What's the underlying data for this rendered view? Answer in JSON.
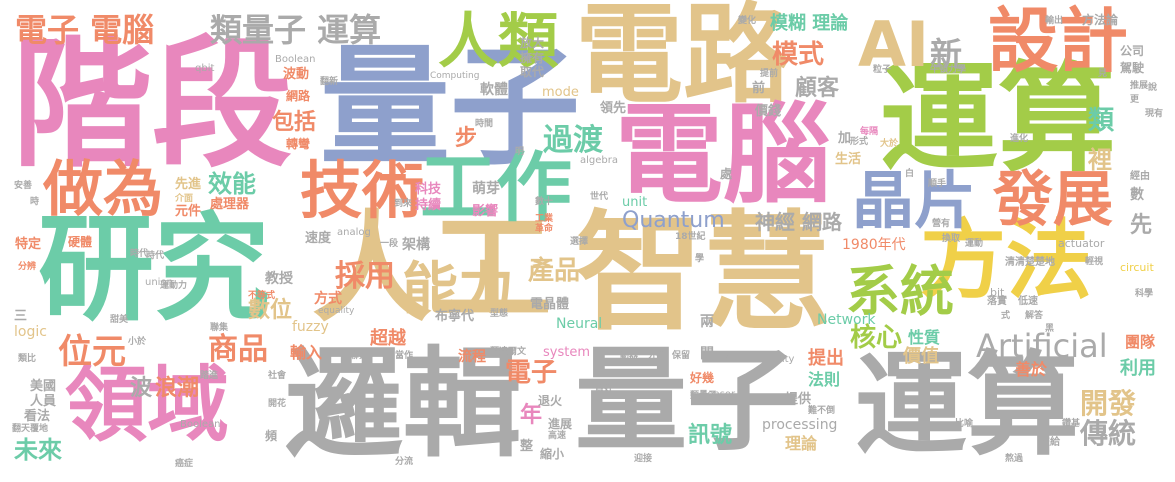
{
  "palette": {
    "pink": "#e887bd",
    "gold": "#e2c48a",
    "green": "#6ccca8",
    "gray": "#aaaaaa",
    "lime": "#a3cc48",
    "salmon": "#f08a68",
    "blue": "#8ea0cc",
    "yellow": "#f0d048"
  },
  "words": {
    "jieduan": "階段",
    "liangzi": "量子",
    "dianlu": "電路",
    "yunsuan_top": "運算",
    "diannao_big": "電腦",
    "yanjiu": "研究",
    "rengong": "人工",
    "zhihui": "智慧",
    "fangfa": "方法",
    "luoji": "邏輯",
    "liangzi_bottom": "量子",
    "yunsuan_bottom": "運算",
    "lingyu": "領域",
    "gongzuo": "工作",
    "jishu": "技術",
    "shiji": "設計",
    "ai": "AI",
    "zuowei": "做為",
    "renlei": "人類",
    "jingpian": "晶片",
    "fazhan": "發展",
    "nengli": "能力",
    "xitong": "系統",
    "artificial": "Artificial",
    "dianzi_diannao": "電子 電腦",
    "leiliangzi_yunsuan": "類量子 運算",
    "xin": "新",
    "moshi": "模式",
    "muhu_lilun": "模糊 理論",
    "guoke": "顧客",
    "guodu": "過渡",
    "caiyong": "採用",
    "chanpin": "產品",
    "weiyuan": "位元",
    "shangpin": "商品",
    "hexin": "核心",
    "kaifa": "開發",
    "chuantong": "傳統",
    "xunhao": "訊號",
    "weilai": "未來",
    "quantum": "Quantum",
    "shenjing_wanglu": "神經 網路",
    "xiaoneng": "效能",
    "baokuo": "包括",
    "shengdian_zuoti": "電子",
    "lei": "類",
    "li": "裡",
    "shuwei": "數位",
    "bo": "波",
    "langchao": "浪潮",
    "xian": "先",
    "nian": "年",
    "bu": "步",
    "year1980": "1980年代",
    "neural": "Neural",
    "network": "Network",
    "fuzzy": "fuzzy",
    "logic": "logic",
    "system": "system",
    "processing": "processing",
    "unit": "unit",
    "computing": "Computing",
    "boolean_top": "Boolean",
    "boolean_bottom": "Boolean",
    "algebra": "algebra",
    "mode": "mode",
    "qbit": "qbit",
    "analog": "analog",
    "union": "union",
    "equality": "equality",
    "inequality": "inequality",
    "sensor": "sensor",
    "actuator": "actuator",
    "circuit": "circuit",
    "bit": "bit",
    "chaoyue": "超越",
    "buerdai": "布寧代",
    "shuru": "輸入",
    "liucheng": "流程",
    "tichu": "提出",
    "fazhe": "法則",
    "shanyu": "善於",
    "liyong": "利用",
    "jiazhi": "價值",
    "xingzhi": "性質",
    "tuandui": "團隊",
    "mingya": "萌芽",
    "kejichixu": "科技 持續",
    "yingxiang": "影響",
    "jiagou": "架構",
    "sudu": "速度",
    "jiaoshou": "教授",
    "fangshi": "方式",
    "dianjingti": "電晶體",
    "ruanti": "軟體",
    "lingxian": "領先",
    "jiajian": "價錢",
    "fangda": "放大",
    "yongyou": "擁有",
    "qudai": "取代",
    "wanglu": "網路",
    "zhuanwan": "轉彎",
    "bodong": "波動",
    "tedian": "特定",
    "yingti": "硬體",
    "yuanjian": "元件",
    "chuliqi": "處理器",
    "xianjin": "先進",
    "jiemian": "介面",
    "meiguo": "美國",
    "renyuan": "人員",
    "kanfa": "看法",
    "san": "三",
    "tuihuo": "退火",
    "jinzhan": "進展",
    "gaosu": "高速",
    "suoxiao": "縮小",
    "zheng": "整",
    "haoji": "好幾",
    "tigong": "提供",
    "lilun_bottom": "理論",
    "liang": "兩",
    "jian": "間",
    "shenghuo": "生活",
    "jia": "加",
    "xingshi": "形式",
    "chu": "處",
    "fangfalun": "方法論",
    "gongsi": "公司",
    "jiashi": "駕駛",
    "niudunlixue": "牛頓力學",
    "lizi": "粒子",
    "shidai": "時代",
    "qingqingchuchu": "清清楚楚地",
    "jingyou": "經由",
    "kexue": "科學",
    "shu": "數",
    "bian": "變化",
    "shuchu": "輸出",
    "shijie": "世代",
    "zhongshi": "18世紀",
    "misc_a": "安善",
    "misc_b": "時",
    "misc_c": "分辨",
    "misc_d": "類比",
    "misc_e": "翻天覆地",
    "misc_f": "癌症",
    "misc_g": "開花",
    "misc_h": "甜美",
    "misc_i": "小於",
    "misc_j": "聯集",
    "misc_k": "不等式",
    "misc_l": "運動力",
    "misc_m": "一段",
    "misc_n": "到來",
    "misc_o": "當作",
    "misc_p": "做好",
    "misc_q": "保留",
    "misc_r": "外界",
    "misc_s": "流向",
    "misc_t": "動器",
    "misc_u": "換取",
    "misc_v": "營有",
    "misc_w": "落實",
    "misc_x": "低速",
    "misc_y": "解答",
    "misc_z": "黑",
    "misc_aa": "交給",
    "misc_ab": "熬過",
    "misc_ac": "比喻",
    "misc_ad": "分流",
    "misc_ae": "迎接",
    "misc_af": "推展",
    "misc_ag": "現有",
    "misc_ah": "進化",
    "misc_ai": "順手",
    "misc_aj": "大於",
    "misc_ak": "白",
    "misc_al": "每隔",
    "misc_am": "時間",
    "misc_an": "明",
    "misc_ao": "翻新",
    "misc_ap": "提前",
    "misc_aq": "前",
    "misc_ar": "工業革命",
    "misc_as": "選擇",
    "misc_at": "數十",
    "misc_au": "類達爾文",
    "misc_av": "聯繫",
    "misc_aw": "踏進",
    "misc_ax": "社會",
    "misc_ay": "更",
    "misc_az": "說",
    "misc_ba": "見",
    "misc_bb": "學",
    "misc_bc": "運動",
    "misc_bd": "輕視",
    "misc_be": "式",
    "misc_bf": "鑽基",
    "misc_bg": "難不倒",
    "misc_bh": "類量子",
    "misc_bi": "型態",
    "misc_bj": "時代",
    "misc_bk": "頻"
  }
}
